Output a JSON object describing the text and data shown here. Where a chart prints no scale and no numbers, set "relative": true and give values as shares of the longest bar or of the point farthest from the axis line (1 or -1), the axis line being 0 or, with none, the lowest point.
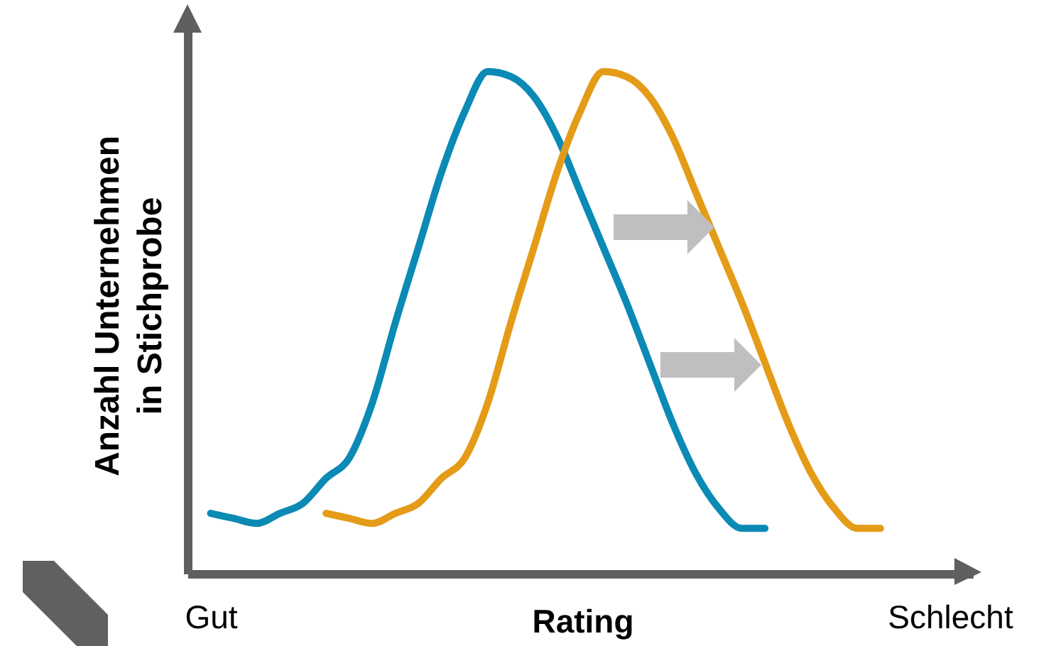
{
  "chart_data": {
    "type": "line",
    "relative": true,
    "xlabel": "Rating",
    "ylabel": "Anzahl Unternehmen\nin Stichprobe",
    "categories": [
      "Gut",
      null,
      null,
      null,
      null,
      null,
      null,
      null,
      null,
      null,
      null,
      null,
      null,
      null,
      null,
      null,
      null,
      null,
      null,
      null,
      null,
      null,
      null,
      null,
      null,
      null,
      null,
      null,
      null,
      null,
      null,
      null,
      "Schlecht"
    ],
    "series": [
      {
        "color": "#0a8ab4",
        "values": [
          0.12,
          0.11,
          0.1,
          0.12,
          0.14,
          0.19,
          0.23,
          0.34,
          0.5,
          0.65,
          0.8,
          0.92,
          1.0,
          0.99,
          0.95,
          0.87,
          0.76,
          0.65,
          0.54,
          0.42,
          0.3,
          0.2,
          0.13,
          0.09,
          0.09,
          null,
          null,
          null,
          null,
          null,
          null,
          null,
          null
        ]
      },
      {
        "color": "#e49b17",
        "values": [
          null,
          null,
          null,
          null,
          null,
          0.12,
          0.11,
          0.1,
          0.12,
          0.14,
          0.19,
          0.23,
          0.34,
          0.5,
          0.65,
          0.8,
          0.92,
          1.0,
          0.99,
          0.95,
          0.87,
          0.76,
          0.65,
          0.54,
          0.42,
          0.3,
          0.2,
          0.13,
          0.09,
          0.09,
          null,
          null,
          null
        ]
      }
    ],
    "grid": false,
    "marker": "none",
    "line_style": "solid"
  }
}
